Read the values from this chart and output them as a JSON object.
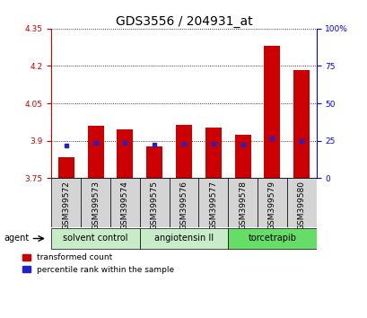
{
  "title": "GDS3556 / 204931_at",
  "samples": [
    "GSM399572",
    "GSM399573",
    "GSM399574",
    "GSM399575",
    "GSM399576",
    "GSM399577",
    "GSM399578",
    "GSM399579",
    "GSM399580"
  ],
  "red_bar_top": [
    3.835,
    3.96,
    3.945,
    3.877,
    3.963,
    3.953,
    3.925,
    4.28,
    4.185
  ],
  "blue_marker": [
    3.882,
    3.893,
    3.893,
    3.883,
    3.888,
    3.888,
    3.885,
    3.91,
    3.9
  ],
  "bar_bottom": 3.75,
  "ylim": [
    3.75,
    4.35
  ],
  "yticks_left": [
    3.75,
    3.9,
    4.05,
    4.2,
    4.35
  ],
  "yticks_right": [
    0,
    25,
    50,
    75,
    100
  ],
  "right_ylim": [
    0,
    100
  ],
  "bar_color": "#cc0000",
  "blue_color": "#2222cc",
  "plot_bg": "#ffffff",
  "title_fontsize": 10,
  "tick_fontsize": 6.5,
  "group_info": [
    {
      "label": "solvent control",
      "start": 0,
      "end": 2,
      "color": "#c8ecc8"
    },
    {
      "label": "angiotensin II",
      "start": 3,
      "end": 5,
      "color": "#c8ecc8"
    },
    {
      "label": "torcetrapib",
      "start": 6,
      "end": 8,
      "color": "#66dd66"
    }
  ]
}
